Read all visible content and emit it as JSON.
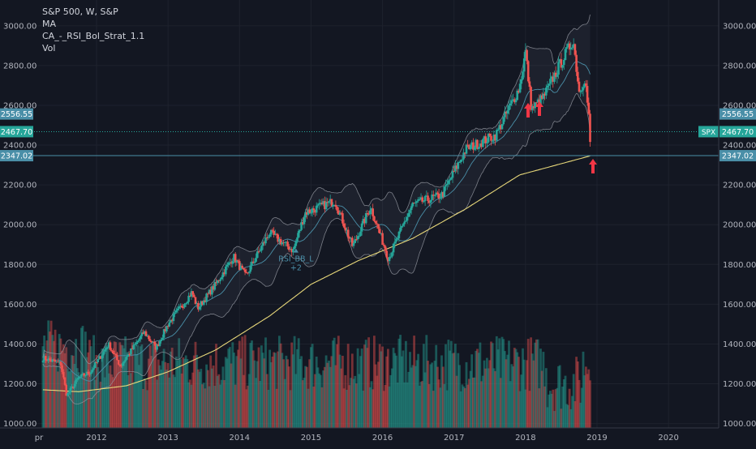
{
  "chart_data": {
    "type": "candlestick",
    "title": "S&P 500, W, S&P",
    "indicators": [
      "MA",
      "CA_-_RSI_Bol_Strat_1.1",
      "Vol"
    ],
    "symbol_badge": "SPX",
    "x_tick_labels": [
      "pr",
      "2012",
      "2013",
      "2014",
      "2015",
      "2016",
      "2017",
      "2018",
      "2019",
      "2020"
    ],
    "y_tick_labels": [
      "3000.00",
      "2800.00",
      "2600.00",
      "2400.00",
      "2200.00",
      "2000.00",
      "1800.00",
      "1600.00",
      "1400.00",
      "1200.00",
      "1000.00"
    ],
    "ylim": [
      978,
      3040
    ],
    "price_markers": [
      {
        "label": "2556.55",
        "value": 2556.55,
        "color": "#4a8fa8"
      },
      {
        "label": "2467.70",
        "value": 2467.7,
        "color": "#26a69a",
        "line": "dotted"
      },
      {
        "label": "2347.02",
        "value": 2347.02,
        "color": "#4a8fa8",
        "line": "solid"
      }
    ],
    "signal_annotation": {
      "label": "RSI_BB_L",
      "sublabel": "+2",
      "color": "#4a8fa8"
    },
    "price_series_approx": [
      [
        "2011-04",
        1330
      ],
      [
        "2011-07",
        1300
      ],
      [
        "2011-08",
        1140
      ],
      [
        "2011-10",
        1230
      ],
      [
        "2011-12",
        1260
      ],
      [
        "2012-03",
        1400
      ],
      [
        "2012-05",
        1290
      ],
      [
        "2012-09",
        1460
      ],
      [
        "2012-11",
        1380
      ],
      [
        "2013-01",
        1500
      ],
      [
        "2013-05",
        1660
      ],
      [
        "2013-06",
        1580
      ],
      [
        "2013-09",
        1700
      ],
      [
        "2013-12",
        1840
      ],
      [
        "2014-02",
        1740
      ],
      [
        "2014-06",
        1960
      ],
      [
        "2014-10",
        1870
      ],
      [
        "2014-12",
        2060
      ],
      [
        "2015-05",
        2120
      ],
      [
        "2015-08",
        1890
      ],
      [
        "2015-11",
        2090
      ],
      [
        "2016-02",
        1830
      ],
      [
        "2016-06",
        2100
      ],
      [
        "2016-11",
        2150
      ],
      [
        "2017-03",
        2380
      ],
      [
        "2017-08",
        2450
      ],
      [
        "2017-12",
        2690
      ],
      [
        "2018-01",
        2870
      ],
      [
        "2018-02",
        2580
      ],
      [
        "2018-04",
        2640
      ],
      [
        "2018-06",
        2760
      ],
      [
        "2018-09",
        2930
      ],
      [
        "2018-10",
        2670
      ],
      [
        "2018-11",
        2740
      ],
      [
        "2018-12",
        2416
      ]
    ],
    "moving_average_approx": [
      [
        "2011-04",
        1170
      ],
      [
        "2011-10",
        1160
      ],
      [
        "2012-06",
        1190
      ],
      [
        "2013-01",
        1260
      ],
      [
        "2013-09",
        1370
      ],
      [
        "2014-06",
        1540
      ],
      [
        "2015-01",
        1700
      ],
      [
        "2015-09",
        1820
      ],
      [
        "2016-06",
        1930
      ],
      [
        "2017-03",
        2080
      ],
      [
        "2017-12",
        2250
      ],
      [
        "2018-12",
        2347
      ]
    ]
  }
}
